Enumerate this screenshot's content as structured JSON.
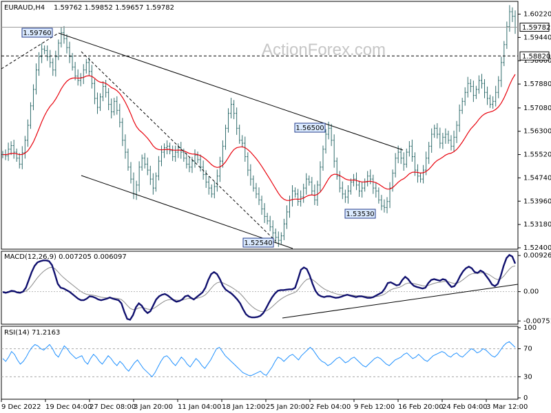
{
  "header": {
    "symbol_tf": "EURAUD,H4",
    "ohlc": "1.59762 1.59852 1.59657 1.59782"
  },
  "watermark": "ActionForex.com",
  "colors": {
    "background": "#ffffff",
    "bars": "#2e6b6b",
    "ma": "#e8000b",
    "macd": "#10106e",
    "signal": "#8a8a8a",
    "rsi": "#1e90ff",
    "trend": "#000000",
    "label_bg": "#dcebff"
  },
  "chart_data": [
    {
      "type": "ohlc",
      "title": "EURAUD,H4",
      "y_ticks": [
        "1.60220",
        "1.59440",
        "1.58660",
        "1.57880",
        "1.57080",
        "1.56300",
        "1.55520",
        "1.54740",
        "1.53960",
        "1.53180",
        "1.52400"
      ],
      "y_range": [
        1.524,
        1.606
      ],
      "price_labels": [
        {
          "text": "1.59782",
          "value": 1.59782,
          "style": "filled"
        },
        {
          "text": "1.58820",
          "value": 1.5882,
          "style": "filled"
        }
      ],
      "annotations": [
        {
          "text": "1.59760",
          "value": 1.5976
        },
        {
          "text": "1.56500",
          "value": 1.565
        },
        {
          "text": "1.53530",
          "value": 1.5353
        },
        {
          "text": "1.52540",
          "value": 1.5254
        }
      ],
      "price_series": [
        1.5552,
        1.5548,
        1.557,
        1.5582,
        1.556,
        1.554,
        1.552,
        1.5558,
        1.56,
        1.565,
        1.5715,
        1.577,
        1.5835,
        1.588,
        1.5905,
        1.59,
        1.588,
        1.586,
        1.5835,
        1.588,
        1.5925,
        1.596,
        1.594,
        1.591,
        1.588,
        1.5845,
        1.5815,
        1.58,
        1.581,
        1.5835,
        1.586,
        1.583,
        1.579,
        1.574,
        1.571,
        1.5745,
        1.578,
        1.576,
        1.572,
        1.5695,
        1.573,
        1.57,
        1.566,
        1.56,
        1.556,
        1.551,
        1.547,
        1.542,
        1.545,
        1.551,
        1.554,
        1.552,
        1.55,
        1.547,
        1.544,
        1.548,
        1.553,
        1.556,
        1.5575,
        1.558,
        1.5565,
        1.5545,
        1.556,
        1.5575,
        1.556,
        1.554,
        1.552,
        1.551,
        1.553,
        1.555,
        1.5535,
        1.551,
        1.5485,
        1.546,
        1.544,
        1.542,
        1.5445,
        1.548,
        1.553,
        1.558,
        1.564,
        1.569,
        1.572,
        1.569,
        1.564,
        1.56,
        1.559,
        1.5545,
        1.55,
        1.547,
        1.544,
        1.542,
        1.54,
        1.537,
        1.5345,
        1.533,
        1.531,
        1.529,
        1.5275,
        1.5265,
        1.528,
        1.532,
        1.536,
        1.54,
        1.543,
        1.542,
        1.5395,
        1.541,
        1.544,
        1.547,
        1.546,
        1.543,
        1.54,
        1.545,
        1.551,
        1.557,
        1.562,
        1.564,
        1.56,
        1.553,
        1.548,
        1.544,
        1.542,
        1.541,
        1.543,
        1.546,
        1.547,
        1.545,
        1.543,
        1.544,
        1.546,
        1.548,
        1.547,
        1.544,
        1.543,
        1.54,
        1.538,
        1.5375,
        1.5395,
        1.544,
        1.549,
        1.554,
        1.556,
        1.554,
        1.552,
        1.556,
        1.558,
        1.5545,
        1.55,
        1.548,
        1.547,
        1.55,
        1.554,
        1.558,
        1.562,
        1.564,
        1.562,
        1.559,
        1.561,
        1.562,
        1.56,
        1.558,
        1.561,
        1.565,
        1.57,
        1.573,
        1.576,
        1.579,
        1.578,
        1.575,
        1.577,
        1.58,
        1.579,
        1.576,
        1.574,
        1.572,
        1.573,
        1.576,
        1.58,
        1.586,
        1.592,
        1.598,
        1.603,
        1.6015,
        1.5978
      ]
    },
    {
      "type": "line",
      "title": "MACD(12,26,9) 0.007205 0.006097",
      "y_ticks": [
        "0.009263",
        "0.00",
        "-0.007517"
      ],
      "y_range": [
        -0.008,
        0.01
      ],
      "macd": [
        -0.0001,
        -0.0003,
        -0.0001,
        0.0002,
        0.0001,
        -0.0002,
        -0.0003,
        0.0,
        0.001,
        0.003,
        0.005,
        0.0066,
        0.0075,
        0.0078,
        0.008,
        0.008,
        0.0078,
        0.0068,
        0.0045,
        0.002,
        0.001,
        0.0008,
        0.0004,
        0.0,
        -0.0006,
        -0.0012,
        -0.0018,
        -0.0022,
        -0.0022,
        -0.0018,
        -0.0012,
        -0.0013,
        -0.0016,
        -0.002,
        -0.0022,
        -0.002,
        -0.0018,
        -0.0015,
        -0.0018,
        -0.002,
        -0.0022,
        -0.003,
        -0.0052,
        -0.007,
        -0.0072,
        -0.006,
        -0.004,
        -0.003,
        -0.0036,
        -0.0048,
        -0.0055,
        -0.005,
        -0.0035,
        -0.002,
        -0.0012,
        -0.0008,
        -0.0006,
        -0.001,
        -0.0016,
        -0.0022,
        -0.0026,
        -0.0024,
        -0.002,
        -0.0012,
        -0.001,
        -0.0016,
        -0.002,
        -0.0014,
        -0.0008,
        -0.0002,
        0.001,
        0.003,
        0.0045,
        0.005,
        0.0045,
        0.0032,
        0.0015,
        0.0005,
        0.0,
        -0.0005,
        -0.0012,
        -0.002,
        -0.003,
        -0.0045,
        -0.0058,
        -0.0064,
        -0.0066,
        -0.0066,
        -0.0065,
        -0.0062,
        -0.0055,
        -0.0042,
        -0.0028,
        -0.0015,
        -0.0005,
        0.0002,
        0.0004,
        0.0004,
        0.0005,
        0.0006,
        0.0006,
        0.001,
        0.0032,
        0.0056,
        0.0062,
        0.0058,
        0.0042,
        0.002,
        0.0002,
        -0.0008,
        -0.0012,
        -0.0014,
        -0.0012,
        -0.0012,
        -0.0014,
        -0.0016,
        -0.0015,
        -0.0013,
        -0.001,
        -0.0008,
        -0.001,
        -0.0012,
        -0.0014,
        -0.0012,
        -0.0012,
        -0.0014,
        -0.0016,
        -0.0016,
        -0.0014,
        -0.001,
        -0.0006,
        -0.0002,
        0.0008,
        0.0022,
        0.0024,
        0.002,
        0.0016,
        0.0018,
        0.003,
        0.0038,
        0.0032,
        0.0022,
        0.0015,
        0.0012,
        0.001,
        0.0008,
        0.001,
        0.0022,
        0.003,
        0.0032,
        0.003,
        0.0028,
        0.0032,
        0.003,
        0.002,
        0.0012,
        0.0014,
        0.0025,
        0.004,
        0.0052,
        0.006,
        0.0064,
        0.006,
        0.005,
        0.0048,
        0.0054,
        0.005,
        0.004,
        0.003,
        0.0018,
        0.0014,
        0.002,
        0.004,
        0.0066,
        0.0086,
        0.0094,
        0.009,
        0.0072
      ]
    },
    {
      "type": "line",
      "title": "RSI(14) 71.2163",
      "y_ticks": [
        "100",
        "70",
        "30",
        "0"
      ],
      "y_range": [
        0,
        100
      ],
      "levels": [
        70,
        30
      ],
      "rsi": [
        56,
        52,
        58,
        66,
        62,
        54,
        48,
        52,
        58,
        66,
        72,
        76,
        74,
        70,
        68,
        72,
        76,
        70,
        62,
        58,
        66,
        74,
        70,
        64,
        60,
        56,
        58,
        60,
        52,
        48,
        56,
        62,
        58,
        52,
        48,
        54,
        60,
        56,
        50,
        46,
        52,
        48,
        42,
        38,
        44,
        50,
        54,
        48,
        42,
        38,
        34,
        30,
        36,
        44,
        52,
        58,
        60,
        56,
        50,
        46,
        52,
        58,
        54,
        48,
        44,
        50,
        56,
        52,
        46,
        42,
        48,
        54,
        62,
        70,
        72,
        66,
        60,
        56,
        52,
        48,
        44,
        40,
        36,
        34,
        32,
        32,
        34,
        36,
        38,
        34,
        32,
        38,
        44,
        52,
        58,
        56,
        52,
        56,
        60,
        62,
        58,
        54,
        60,
        64,
        68,
        72,
        68,
        62,
        56,
        52,
        50,
        46,
        48,
        52,
        56,
        58,
        54,
        50,
        52,
        56,
        58,
        54,
        50,
        46,
        44,
        48,
        52,
        56,
        58,
        56,
        52,
        48,
        46,
        50,
        54,
        56,
        58,
        62,
        64,
        60,
        56,
        58,
        62,
        58,
        54,
        52,
        56,
        60,
        62,
        64,
        66,
        64,
        60,
        58,
        62,
        64,
        60,
        58,
        62,
        66,
        70,
        68,
        64,
        66,
        70,
        68,
        64,
        60,
        58,
        62,
        68,
        74,
        78,
        80,
        76,
        72
      ]
    }
  ],
  "x_ticks": [
    "9 Dec 2022",
    "19 Dec 04:00",
    "27 Dec 08:00",
    "3 Jan 20:00",
    "11 Jan 04:00",
    "18 Jan 12:00",
    "25 Jan 20:00",
    "2 Feb 04:00",
    "9 Feb 12:00",
    "16 Feb 20:00",
    "24 Feb 04:00",
    "3 Mar 12:00"
  ]
}
